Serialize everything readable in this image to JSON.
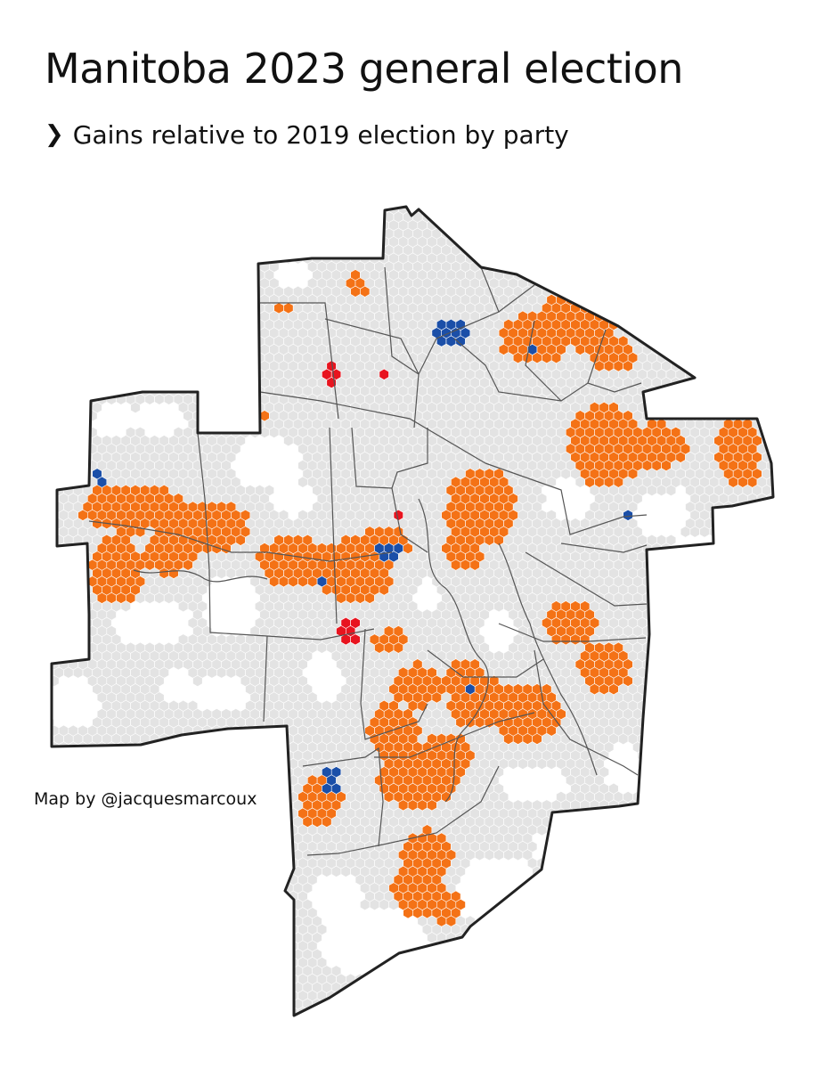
{
  "title": "Manitoba 2023 general election",
  "subtitle": "Gains relative to 2019 election by party",
  "subtitle_icon": "chevron-right-icon",
  "credit": "Map by @jacquesmarcoux",
  "colors": {
    "background": "#ffffff",
    "no_gain": "#e3e3e3",
    "ndp_gain": "#f47216",
    "pc_gain": "#1b4fa8",
    "liberal_gain": "#e8141f",
    "boundary": "#222222",
    "district_line": "#555555"
  }
}
